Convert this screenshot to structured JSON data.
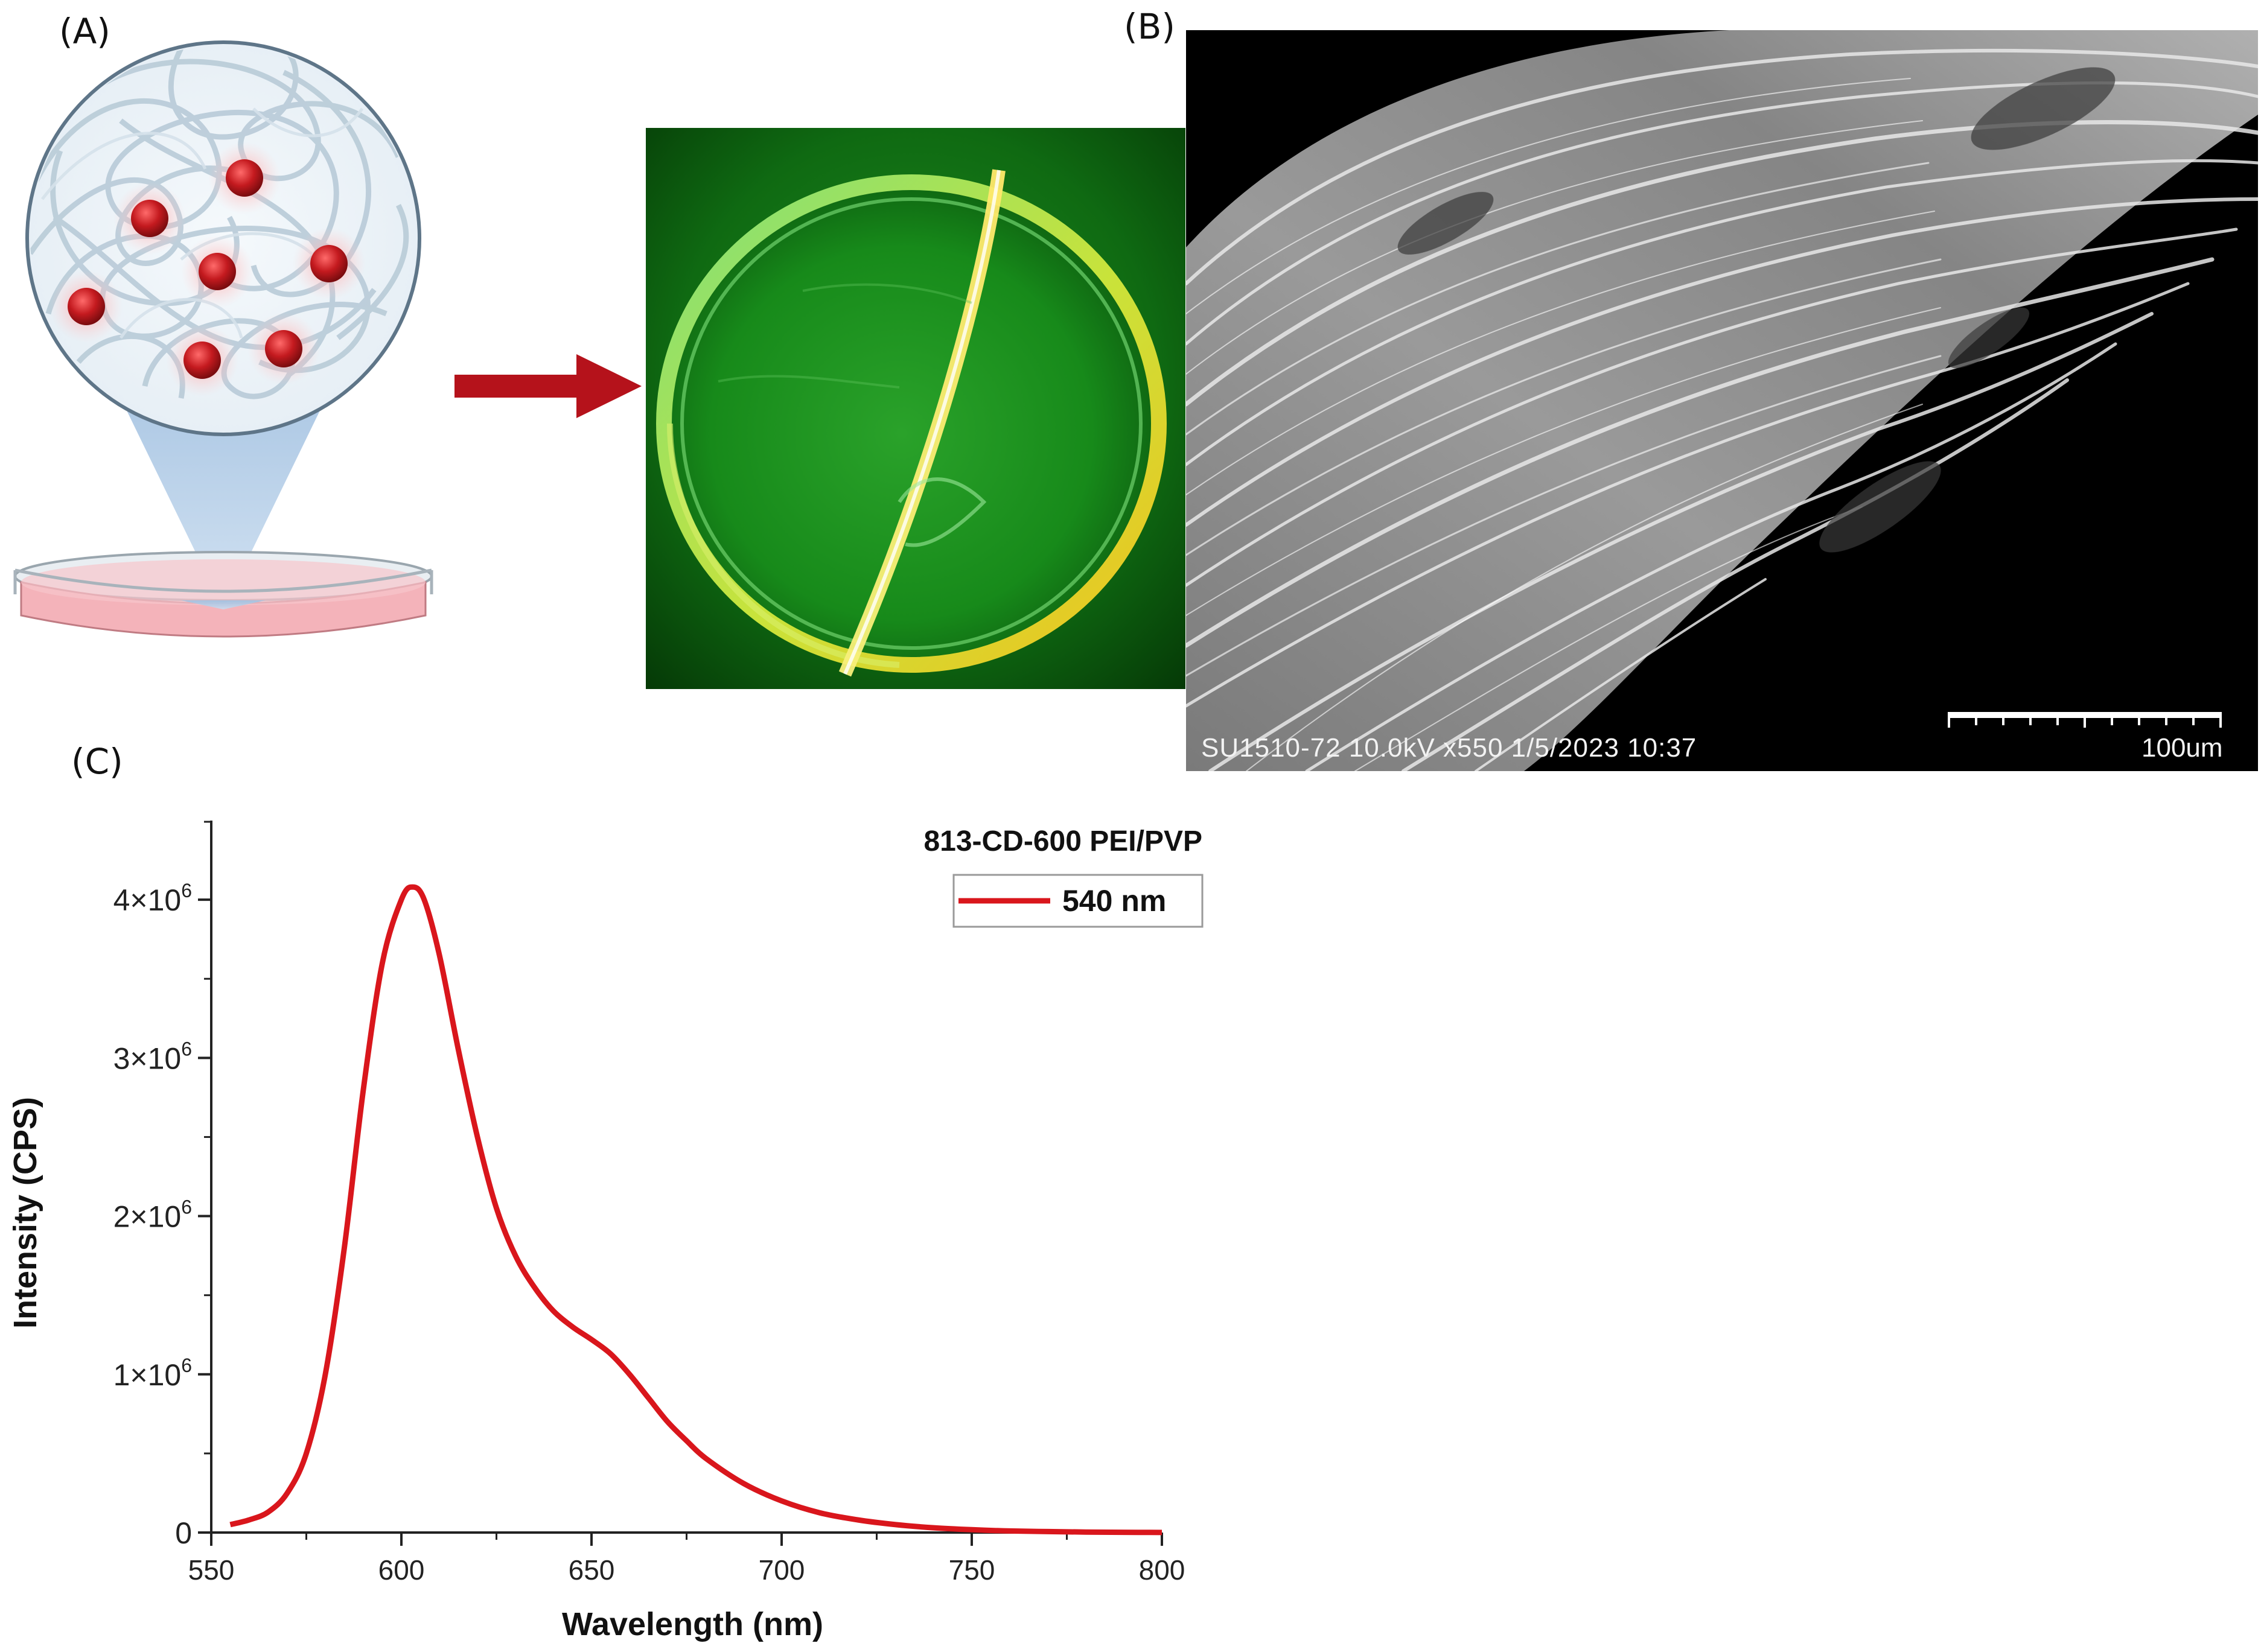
{
  "panels": {
    "a": {
      "label": "(A)"
    },
    "b": {
      "label": "(B)",
      "sem_caption": "SU1510-72 10.0kV x550  1/5/2023 10:37",
      "scale_bar_label": "100um"
    },
    "c": {
      "label": "(C)"
    }
  },
  "colors": {
    "curve": "#d9161c",
    "arrow": "#b5121b",
    "particle": "#c41a1f",
    "fiber": "#b9cbd8",
    "dish_liquid": "#f0a7ae",
    "green_glow": "#1fbf1f",
    "yellow_glow": "#e6d21a"
  },
  "icons": [
    "nanoparticle-dot",
    "petri-dish",
    "right-arrow-icon"
  ],
  "chart_data": {
    "type": "line",
    "xlabel": "Wavelength (nm)",
    "ylabel": "Intensity (CPS)",
    "xlim": [
      550,
      800
    ],
    "ylim": [
      0,
      4500000
    ],
    "x_ticks": [
      "550",
      "600",
      "650",
      "700",
      "750",
      "800"
    ],
    "y_ticks": [
      {
        "value": 0,
        "label": "0"
      },
      {
        "value": 1000000,
        "base": "1×10",
        "exp": "6"
      },
      {
        "value": 2000000,
        "base": "2×10",
        "exp": "6"
      },
      {
        "value": 3000000,
        "base": "3×10",
        "exp": "6"
      },
      {
        "value": 4000000,
        "base": "4×10",
        "exp": "6"
      }
    ],
    "legend_title": "813-CD-600 PEI/PVP",
    "legend_position": "top-right",
    "series": [
      {
        "name": "540 nm",
        "x": [
          555,
          560,
          565,
          570,
          575,
          580,
          585,
          590,
          595,
          600,
          603,
          606,
          610,
          615,
          620,
          625,
          630,
          635,
          640,
          645,
          650,
          655,
          660,
          665,
          670,
          675,
          680,
          690,
          700,
          710,
          720,
          730,
          740,
          750,
          760,
          770,
          780,
          790,
          800
        ],
        "y": [
          50000,
          80000,
          130000,
          250000,
          500000,
          1000000,
          1800000,
          2800000,
          3600000,
          4000000,
          4080000,
          4000000,
          3650000,
          3050000,
          2500000,
          2050000,
          1750000,
          1550000,
          1400000,
          1300000,
          1220000,
          1130000,
          1000000,
          850000,
          700000,
          580000,
          470000,
          310000,
          200000,
          125000,
          80000,
          50000,
          30000,
          18000,
          10000,
          6000,
          3000,
          1500,
          500
        ]
      }
    ]
  }
}
